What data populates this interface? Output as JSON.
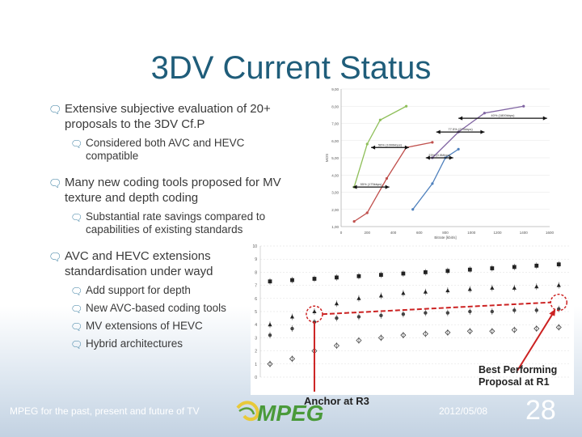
{
  "slide": {
    "title": "3DV Current Status",
    "bullets": [
      {
        "text": "Extensive subjective evaluation of 20+ proposals to the 3DV Cf.P",
        "sub": [
          "Considered both AVC and HEVC compatible"
        ]
      },
      {
        "text": "Many new coding tools proposed for MV texture and depth coding",
        "sub": [
          "Substantial rate savings compared to capabilities of existing standards"
        ]
      },
      {
        "text": "AVC and  HEVC extensions standardisation under wayd",
        "sub": [
          "Add support for depth",
          "New AVC-based coding tools",
          "MV extensions of HEVC",
          "Hybrid architectures"
        ]
      }
    ],
    "icons": {
      "bullet": "speech-bubble-icon"
    },
    "colors": {
      "title": "#1f5d7a",
      "bullet_icon": "#3a7ea1",
      "annotation_red": "#cc2222"
    }
  },
  "footer": {
    "left": "MPEG for the past, present and future of TV",
    "date": "2012/05/08",
    "page": "28",
    "logo_text": "MPEG"
  },
  "annotations": {
    "anchor": "Anchor at R3",
    "best_line1": "Best Performing",
    "best_line2": "Proposal at R1"
  },
  "chart_data": [
    {
      "type": "line",
      "title": "",
      "xlabel": "Bitrate [kbit/s]",
      "ylabel": "MOS",
      "x_ticks": [
        "0",
        "200",
        "400",
        "600",
        "800",
        "1000",
        "1200",
        "1400",
        "1600"
      ],
      "y_ticks": [
        "1,00",
        "2,00",
        "3,00",
        "4,00",
        "5,00",
        "6,00",
        "7,00",
        "8,00",
        "9,00"
      ],
      "xlim": [
        0,
        1600
      ],
      "ylim": [
        1,
        9
      ],
      "series": [
        {
          "color": "#8fbf5a",
          "points": [
            [
              100,
              3.3
            ],
            [
              200,
              5.8
            ],
            [
              300,
              7.2
            ],
            [
              500,
              8.0
            ]
          ]
        },
        {
          "color": "#c0504d",
          "points": [
            [
              100,
              1.3
            ],
            [
              200,
              1.8
            ],
            [
              350,
              3.8
            ],
            [
              500,
              5.6
            ],
            [
              700,
              5.9
            ]
          ]
        },
        {
          "color": "#4f81bd",
          "points": [
            [
              550,
              2.0
            ],
            [
              700,
              3.5
            ],
            [
              800,
              5.0
            ],
            [
              900,
              5.5
            ]
          ]
        },
        {
          "color": "#8064a2",
          "points": [
            [
              700,
              5.0
            ],
            [
              900,
              6.5
            ],
            [
              1100,
              7.6
            ],
            [
              1400,
              8.0
            ]
          ]
        }
      ],
      "annotations": [
        "56% (1000kbps)",
        "77.5% (275kbps)",
        "40% (1800kbps)",
        "23% (0.5Mbps)",
        "55% (175kbps)"
      ]
    },
    {
      "type": "scatter",
      "title": "",
      "xlabel": "",
      "ylabel": "",
      "y_ticks": [
        "0",
        "1",
        "2",
        "3",
        "4",
        "5",
        "6",
        "7",
        "8",
        "9",
        "10"
      ],
      "ylim": [
        0,
        10
      ],
      "x": [
        1,
        2,
        3,
        4,
        5,
        6,
        7,
        8,
        9,
        10,
        11,
        12,
        13,
        14
      ],
      "series": [
        {
          "marker": "filled-square",
          "values": [
            7.3,
            7.4,
            7.5,
            7.6,
            7.7,
            7.8,
            7.9,
            8.0,
            8.1,
            8.2,
            8.3,
            8.4,
            8.5,
            8.6
          ]
        },
        {
          "marker": "filled-triangle",
          "values": [
            4.0,
            4.6,
            5.0,
            5.6,
            6.0,
            6.2,
            6.4,
            6.5,
            6.6,
            6.7,
            6.8,
            6.8,
            6.9,
            7.0
          ]
        },
        {
          "marker": "filled-circle",
          "values": [
            3.2,
            3.7,
            4.2,
            4.5,
            4.6,
            4.7,
            4.8,
            4.9,
            4.9,
            5.0,
            5.0,
            5.1,
            5.1,
            5.2
          ]
        },
        {
          "marker": "open-diamond",
          "values": [
            1.0,
            1.4,
            2.0,
            2.4,
            2.8,
            3.0,
            3.2,
            3.3,
            3.4,
            3.5,
            3.5,
            3.6,
            3.7,
            3.8
          ]
        }
      ]
    }
  ]
}
